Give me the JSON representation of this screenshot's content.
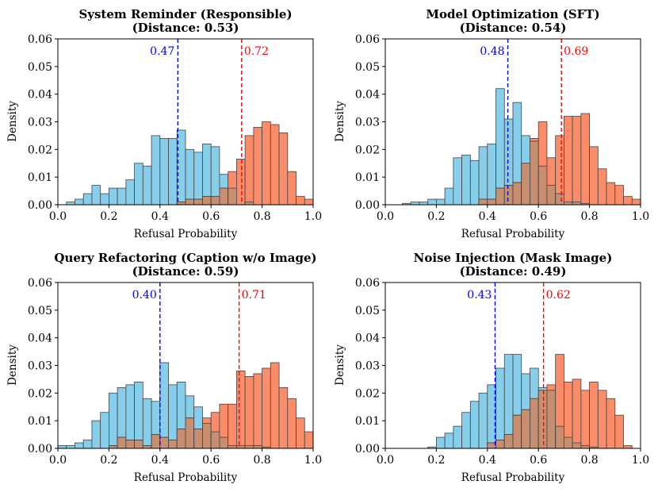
{
  "colors": {
    "first": "#87ceeb",
    "second": "#fa8c6a",
    "overlap": "#c78e6f",
    "edge": "#444444",
    "first_mean": "#0000ff",
    "second_mean": "#ff0000"
  },
  "chart_data": [
    {
      "type": "histogram",
      "title": "System Reminder (Responsible)",
      "subtitle": "(Distance: 0.53)",
      "xlabel": "Refusal Probability",
      "ylabel": "Density",
      "xlim": [
        0,
        1
      ],
      "ylim": [
        0,
        0.06
      ],
      "xticks": [
        "0.0",
        "0.2",
        "0.4",
        "0.6",
        "0.8",
        "1.0"
      ],
      "yticks": [
        "0.00",
        "0.01",
        "0.02",
        "0.03",
        "0.04",
        "0.05",
        "0.06"
      ],
      "bin_edges": [
        0.0,
        0.0333,
        0.0667,
        0.1,
        0.1333,
        0.1667,
        0.2,
        0.2333,
        0.2667,
        0.3,
        0.3333,
        0.3667,
        0.4,
        0.4333,
        0.4667,
        0.5,
        0.5333,
        0.5667,
        0.6,
        0.6333,
        0.6667,
        0.7,
        0.7333,
        0.7667,
        0.8,
        0.8333,
        0.8667,
        0.9,
        0.9333,
        0.9667,
        1.0
      ],
      "series": [
        {
          "name": "blue distribution",
          "color": "#87ceeb",
          "mean": 0.47,
          "mean_label": "0.47",
          "values": [
            0.0,
            0.001,
            0.002,
            0.004,
            0.007,
            0.004,
            0.006,
            0.006,
            0.009,
            0.015,
            0.014,
            0.025,
            0.024,
            0.024,
            0.027,
            0.02,
            0.019,
            0.022,
            0.021,
            0.011,
            0.006,
            0.0,
            0.001,
            0.0,
            0.0,
            0.0,
            0.0,
            0.0,
            0.0,
            0.0
          ]
        },
        {
          "name": "red distribution",
          "color": "#fa8c6a",
          "mean": 0.72,
          "mean_label": "0.72",
          "values": [
            0.0,
            0.0,
            0.0,
            0.0,
            0.0,
            0.0,
            0.0,
            0.0,
            0.0,
            0.0,
            0.0,
            0.0,
            0.0,
            0.0,
            0.001,
            0.002,
            0.002,
            0.003,
            0.003,
            0.006,
            0.012,
            0.0165,
            0.025,
            0.028,
            0.03,
            0.029,
            0.026,
            0.012,
            0.003,
            0.002
          ]
        }
      ]
    },
    {
      "type": "histogram",
      "title": "Model Optimization (SFT)",
      "subtitle": "(Distance: 0.54)",
      "xlabel": "Refusal Probability",
      "ylabel": "Density",
      "xlim": [
        0,
        1
      ],
      "ylim": [
        0,
        0.06
      ],
      "xticks": [
        "0.0",
        "0.2",
        "0.4",
        "0.6",
        "0.8",
        "1.0"
      ],
      "yticks": [
        "0.00",
        "0.01",
        "0.02",
        "0.03",
        "0.04",
        "0.05",
        "0.06"
      ],
      "bin_edges": [
        0.0,
        0.0333,
        0.0667,
        0.1,
        0.1333,
        0.1667,
        0.2,
        0.2333,
        0.2667,
        0.3,
        0.3333,
        0.3667,
        0.4,
        0.4333,
        0.4667,
        0.5,
        0.5333,
        0.5667,
        0.6,
        0.6333,
        0.6667,
        0.7,
        0.7333,
        0.7667,
        0.8,
        0.8333,
        0.8667,
        0.9,
        0.9333,
        0.9667,
        1.0
      ],
      "series": [
        {
          "name": "blue distribution",
          "color": "#87ceeb",
          "mean": 0.48,
          "mean_label": "0.48",
          "values": [
            0.0,
            0.0,
            0.0005,
            0.001,
            0.001,
            0.002,
            0.002,
            0.006,
            0.017,
            0.018,
            0.016,
            0.021,
            0.022,
            0.042,
            0.031,
            0.037,
            0.025,
            0.023,
            0.014,
            0.007,
            0.004,
            0.001,
            0.001,
            0.0005,
            0.0,
            0.0,
            0.0,
            0.0,
            0.0,
            0.0
          ]
        },
        {
          "name": "red distribution",
          "color": "#fa8c6a",
          "mean": 0.69,
          "mean_label": "0.69",
          "values": [
            0.0,
            0.0,
            0.0,
            0.0,
            0.0,
            0.0,
            0.0,
            0.0,
            0.0,
            0.0,
            0.0,
            0.002,
            0.002,
            0.006,
            0.007,
            0.008,
            0.015,
            0.024,
            0.03,
            0.017,
            0.025,
            0.032,
            0.032,
            0.033,
            0.021,
            0.013,
            0.008,
            0.007,
            0.003,
            0.002
          ]
        }
      ]
    },
    {
      "type": "histogram",
      "title": "Query Refactoring (Caption w/o Image)",
      "subtitle": "(Distance: 0.59)",
      "xlabel": "Refusal Probability",
      "ylabel": "Density",
      "xlim": [
        0,
        1
      ],
      "ylim": [
        0,
        0.06
      ],
      "xticks": [
        "0.0",
        "0.2",
        "0.4",
        "0.6",
        "0.8",
        "1.0"
      ],
      "yticks": [
        "0.00",
        "0.01",
        "0.02",
        "0.03",
        "0.04",
        "0.05",
        "0.06"
      ],
      "bin_edges": [
        0.0,
        0.0333,
        0.0667,
        0.1,
        0.1333,
        0.1667,
        0.2,
        0.2333,
        0.2667,
        0.3,
        0.3333,
        0.3667,
        0.4,
        0.4333,
        0.4667,
        0.5,
        0.5333,
        0.5667,
        0.6,
        0.6333,
        0.6667,
        0.7,
        0.7333,
        0.7667,
        0.8,
        0.8333,
        0.8667,
        0.9,
        0.9333,
        0.9667,
        1.0
      ],
      "series": [
        {
          "name": "blue distribution",
          "color": "#87ceeb",
          "mean": 0.4,
          "mean_label": "0.40",
          "values": [
            0.001,
            0.001,
            0.002,
            0.003,
            0.01,
            0.013,
            0.02,
            0.022,
            0.023,
            0.024,
            0.018,
            0.017,
            0.031,
            0.023,
            0.024,
            0.019,
            0.015,
            0.009,
            0.006,
            0.004,
            0.001,
            0.001,
            0.001,
            0.001,
            0.0005,
            0.0,
            0.0,
            0.0,
            0.0,
            0.0
          ]
        },
        {
          "name": "red distribution",
          "color": "#fa8c6a",
          "mean": 0.71,
          "mean_label": "0.71",
          "values": [
            0.0,
            0.0,
            0.0,
            0.0,
            0.0,
            0.0,
            0.001,
            0.004,
            0.003,
            0.003,
            0.001,
            0.005,
            0.004,
            0.003,
            0.007,
            0.011,
            0.007,
            0.011,
            0.013,
            0.016,
            0.016,
            0.028,
            0.026,
            0.027,
            0.029,
            0.031,
            0.022,
            0.018,
            0.011,
            0.006
          ]
        }
      ]
    },
    {
      "type": "histogram",
      "title": "Noise Injection (Mask Image)",
      "subtitle": "(Distance: 0.49)",
      "xlabel": "Refusal Probability",
      "ylabel": "Density",
      "xlim": [
        0,
        1
      ],
      "ylim": [
        0,
        0.06
      ],
      "xticks": [
        "0.0",
        "0.2",
        "0.4",
        "0.6",
        "0.8",
        "1.0"
      ],
      "yticks": [
        "0.00",
        "0.01",
        "0.02",
        "0.03",
        "0.04",
        "0.05",
        "0.06"
      ],
      "bin_edges": [
        0.0,
        0.0333,
        0.0667,
        0.1,
        0.1333,
        0.1667,
        0.2,
        0.2333,
        0.2667,
        0.3,
        0.3333,
        0.3667,
        0.4,
        0.4333,
        0.4667,
        0.5,
        0.5333,
        0.5667,
        0.6,
        0.6333,
        0.6667,
        0.7,
        0.7333,
        0.7667,
        0.8,
        0.8333,
        0.8667,
        0.9,
        0.9333,
        0.9667,
        1.0
      ],
      "series": [
        {
          "name": "blue distribution",
          "color": "#87ceeb",
          "mean": 0.43,
          "mean_label": "0.43",
          "values": [
            0.0,
            0.0,
            0.0,
            0.0,
            0.0,
            0.0005,
            0.004,
            0.0055,
            0.008,
            0.013,
            0.017,
            0.02,
            0.023,
            0.029,
            0.034,
            0.034,
            0.027,
            0.029,
            0.022,
            0.021,
            0.008,
            0.004,
            0.002,
            0.001,
            0.0005,
            0.0,
            0.0,
            0.0,
            0.0,
            0.0
          ]
        },
        {
          "name": "red distribution",
          "color": "#fa8c6a",
          "mean": 0.62,
          "mean_label": "0.62",
          "values": [
            0.0,
            0.0,
            0.0,
            0.0,
            0.0,
            0.0,
            0.0,
            0.0,
            0.0,
            0.0,
            0.0,
            0.0,
            0.002,
            0.003,
            0.005,
            0.012,
            0.014,
            0.018,
            0.021,
            0.023,
            0.034,
            0.024,
            0.025,
            0.021,
            0.024,
            0.021,
            0.018,
            0.012,
            0.001,
            0.0
          ]
        }
      ]
    }
  ]
}
